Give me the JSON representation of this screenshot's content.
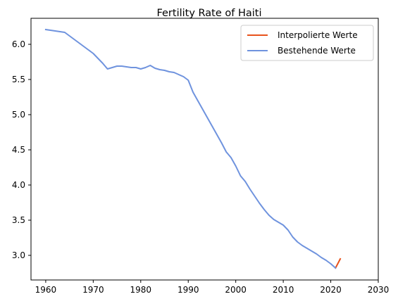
{
  "chart_data": {
    "type": "line",
    "title": "Fertility Rate of Haiti",
    "xlabel": "",
    "ylabel": "",
    "xlim": [
      1956.9,
      2030
    ],
    "ylim": [
      2.65,
      6.37
    ],
    "xticks": [
      1960,
      1970,
      1980,
      1990,
      2000,
      2010,
      2020,
      2030
    ],
    "xtick_labels": [
      "1960",
      "1970",
      "1980",
      "1990",
      "2000",
      "2010",
      "2020",
      "2030"
    ],
    "yticks": [
      3.0,
      3.5,
      4.0,
      4.5,
      5.0,
      5.5,
      6.0
    ],
    "ytick_labels": [
      "3.0",
      "3.5",
      "4.0",
      "4.5",
      "5.0",
      "5.5",
      "6.0"
    ],
    "grid": false,
    "legend_position": "top-right",
    "series": [
      {
        "name": "Interpolierte Werte",
        "color": "#e8521c",
        "x": [
          2021,
          2022
        ],
        "y": [
          2.82,
          2.95
        ]
      },
      {
        "name": "Bestehende Werte",
        "color": "#6f93de",
        "x": [
          1960,
          1961,
          1962,
          1963,
          1964,
          1965,
          1966,
          1967,
          1968,
          1969,
          1970,
          1971,
          1972,
          1973,
          1974,
          1975,
          1976,
          1977,
          1978,
          1979,
          1980,
          1981,
          1982,
          1983,
          1984,
          1985,
          1986,
          1987,
          1988,
          1989,
          1990,
          1991,
          1992,
          1993,
          1994,
          1995,
          1996,
          1997,
          1998,
          1999,
          2000,
          2001,
          2002,
          2003,
          2004,
          2005,
          2006,
          2007,
          2008,
          2009,
          2010,
          2011,
          2012,
          2013,
          2014,
          2015,
          2016,
          2017,
          2018,
          2019,
          2020,
          2021
        ],
        "y": [
          6.21,
          6.2,
          6.19,
          6.18,
          6.17,
          6.12,
          6.07,
          6.02,
          5.97,
          5.92,
          5.87,
          5.8,
          5.73,
          5.65,
          5.67,
          5.69,
          5.69,
          5.68,
          5.67,
          5.67,
          5.65,
          5.67,
          5.7,
          5.66,
          5.64,
          5.63,
          5.61,
          5.6,
          5.57,
          5.54,
          5.49,
          5.32,
          5.2,
          5.08,
          4.96,
          4.84,
          4.72,
          4.6,
          4.47,
          4.39,
          4.27,
          4.13,
          4.05,
          3.94,
          3.84,
          3.74,
          3.65,
          3.57,
          3.51,
          3.47,
          3.43,
          3.36,
          3.26,
          3.19,
          3.14,
          3.1,
          3.06,
          3.02,
          2.97,
          2.93,
          2.88,
          2.82
        ]
      }
    ]
  }
}
